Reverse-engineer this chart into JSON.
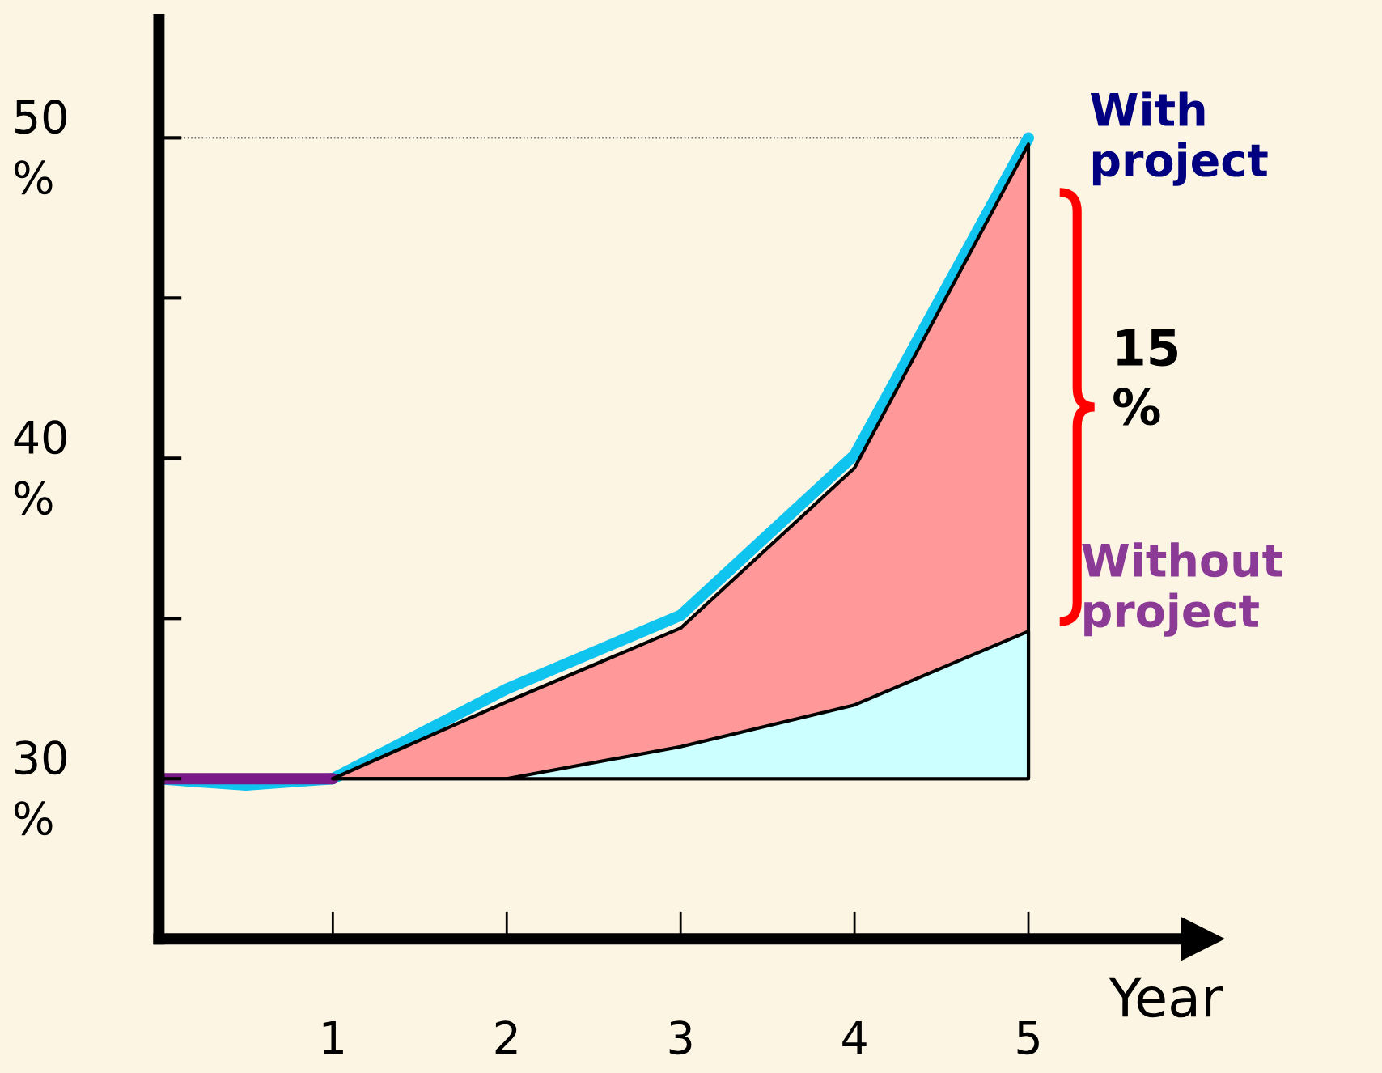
{
  "chart_data": {
    "type": "area",
    "xlabel": "Year",
    "xlim": [
      0,
      6
    ],
    "xticks": [
      1,
      2,
      3,
      4,
      5
    ],
    "ylim": [
      25,
      53.7
    ],
    "yticks": [
      {
        "value": 30,
        "label": "30\n%"
      },
      {
        "value": 35,
        "label": null
      },
      {
        "value": 40,
        "label": "40\n%"
      },
      {
        "value": 45,
        "label": null
      },
      {
        "value": 50,
        "label": "50\n%"
      }
    ],
    "series": [
      {
        "color": "#ff9999",
        "x": [
          1,
          2,
          3,
          4,
          5
        ],
        "values": [
          30,
          32.4,
          34.7,
          39.7,
          49.8
        ]
      },
      {
        "color": "#ccffff",
        "x": [
          1,
          2,
          3,
          4,
          5
        ],
        "values": [
          30,
          30,
          31,
          32.3,
          34.6
        ]
      },
      {
        "type": "line",
        "name": "With project",
        "color": "#10c4f0",
        "x": [
          0,
          0.5,
          1,
          2,
          3,
          4,
          5
        ],
        "values": [
          30,
          29.8,
          30,
          32.8,
          35.1,
          40.1,
          50
        ]
      },
      {
        "type": "line",
        "name": "Without project",
        "color": "#7a1a8a",
        "x": [
          0,
          1
        ],
        "values": [
          30,
          30
        ]
      }
    ],
    "ref_lines": [
      {
        "axis": "y",
        "value": 50,
        "line_style": "dotted",
        "color": "#000000"
      }
    ],
    "annotations": [
      "15\n%"
    ],
    "grid": false,
    "legend": false
  }
}
